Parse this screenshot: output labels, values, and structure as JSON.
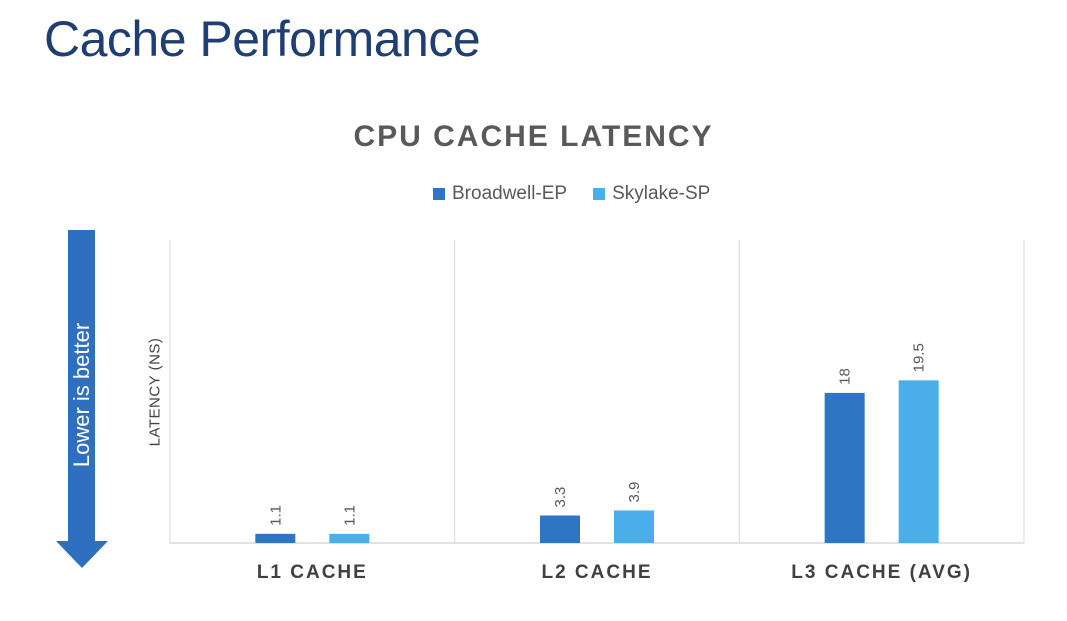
{
  "page": {
    "title": "Cache Performance"
  },
  "arrow": {
    "label": "Lower is better",
    "color": "#2e6fc0"
  },
  "chart_data": {
    "type": "bar",
    "title": "CPU CACHE LATENCY",
    "ylabel": "LATENCY (NS)",
    "xlabel": "",
    "categories": [
      "L1 CACHE",
      "L2 CACHE",
      "L3 CACHE (AVG)"
    ],
    "series": [
      {
        "name": "Broadwell-EP",
        "values": [
          1.1,
          3.3,
          18
        ],
        "labels": [
          "1.1",
          "3.3",
          "18"
        ],
        "color": "#2e75c4"
      },
      {
        "name": "Skylake-SP",
        "values": [
          1.1,
          3.9,
          19.5
        ],
        "labels": [
          "1.1",
          "3.9",
          "19.5"
        ],
        "color": "#49aeea"
      }
    ],
    "ylim": [
      0,
      25
    ],
    "grid": false,
    "legend": "top-center"
  }
}
